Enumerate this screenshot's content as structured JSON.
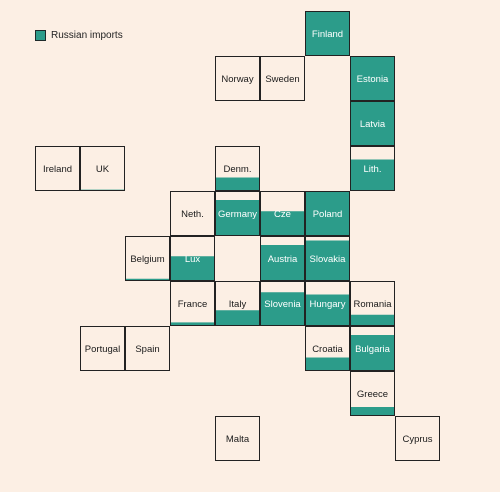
{
  "colors": {
    "fill": "#2c9c8a",
    "background": "#fcefe4",
    "border": "#222222"
  },
  "legend": {
    "label": "Russian imports"
  },
  "chart_data": {
    "type": "tile-map",
    "value_meaning": "share of tile filled from bottom (Russian imports)",
    "legend": [
      "Russian imports"
    ],
    "tiles": [
      {
        "country": "Finland",
        "row": 0,
        "col": 6,
        "value": 1.0
      },
      {
        "country": "Norway",
        "row": 1,
        "col": 4,
        "value": 0.0
      },
      {
        "country": "Sweden",
        "row": 1,
        "col": 5,
        "value": 0.0
      },
      {
        "country": "Estonia",
        "row": 1,
        "col": 7,
        "value": 1.0
      },
      {
        "country": "Latvia",
        "row": 2,
        "col": 7,
        "value": 1.0
      },
      {
        "country": "Ireland",
        "row": 3,
        "col": 0,
        "value": 0.0
      },
      {
        "country": "UK",
        "row": 3,
        "col": 1,
        "value": 0.03
      },
      {
        "country": "Denm.",
        "row": 3,
        "col": 4,
        "value": 0.3
      },
      {
        "country": "Lith.",
        "row": 3,
        "col": 7,
        "value": 0.7
      },
      {
        "country": "Neth.",
        "row": 4,
        "col": 3,
        "value": 0.0
      },
      {
        "country": "Germany",
        "row": 4,
        "col": 4,
        "value": 0.8
      },
      {
        "country": "Cze",
        "row": 4,
        "col": 5,
        "value": 0.55
      },
      {
        "country": "Poland",
        "row": 4,
        "col": 6,
        "value": 1.0
      },
      {
        "country": "Belgium",
        "row": 5,
        "col": 2,
        "value": 0.05
      },
      {
        "country": "Lux",
        "row": 5,
        "col": 3,
        "value": 0.55
      },
      {
        "country": "Austria",
        "row": 5,
        "col": 5,
        "value": 0.8
      },
      {
        "country": "Slovakia",
        "row": 5,
        "col": 6,
        "value": 0.9
      },
      {
        "country": "France",
        "row": 6,
        "col": 3,
        "value": 0.08
      },
      {
        "country": "Italy",
        "row": 6,
        "col": 4,
        "value": 0.35
      },
      {
        "country": "Slovenia",
        "row": 6,
        "col": 5,
        "value": 0.75
      },
      {
        "country": "Hungary",
        "row": 6,
        "col": 6,
        "value": 0.7
      },
      {
        "country": "Romania",
        "row": 6,
        "col": 7,
        "value": 0.25
      },
      {
        "country": "Portugal",
        "row": 7,
        "col": 1,
        "value": 0.0
      },
      {
        "country": "Spain",
        "row": 7,
        "col": 2,
        "value": 0.0
      },
      {
        "country": "Croatia",
        "row": 7,
        "col": 6,
        "value": 0.3
      },
      {
        "country": "Bulgaria",
        "row": 7,
        "col": 7,
        "value": 0.8
      },
      {
        "country": "Greece",
        "row": 8,
        "col": 7,
        "value": 0.2
      },
      {
        "country": "Malta",
        "row": 9,
        "col": 4,
        "value": 0.0
      },
      {
        "country": "Cyprus",
        "row": 9,
        "col": 8,
        "value": 0.0
      }
    ]
  }
}
